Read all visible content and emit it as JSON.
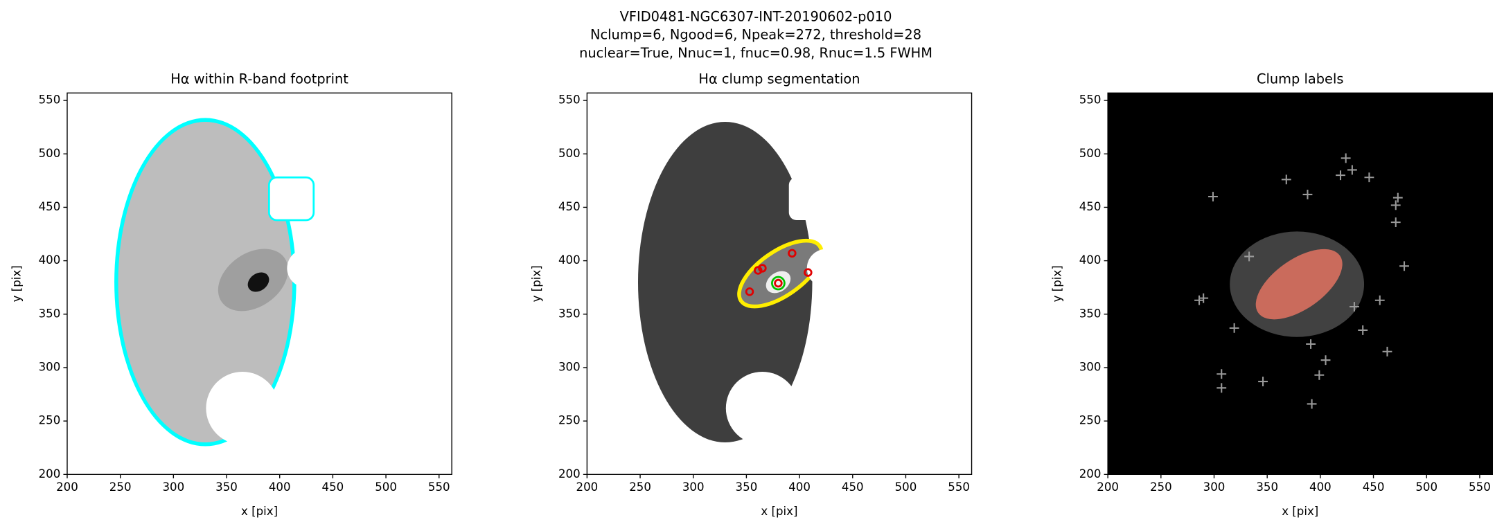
{
  "figure_title": [
    "VFID0481-NGC6307-INT-20190602-p010",
    "Nclump=6, Ngood=6, Npeak=272, threshold=28",
    "nuclear=True, Nnuc=1, fnuc=0.98, Rnuc=1.5 FWHM"
  ],
  "chart_data": [
    {
      "type": "image",
      "title": "Hα within R-band footprint",
      "xlabel": "x [pix]",
      "ylabel": "y [pix]",
      "xlim": [
        200,
        562
      ],
      "ylim": [
        200,
        557
      ],
      "xticks": [
        200,
        250,
        300,
        350,
        400,
        450,
        500,
        550
      ],
      "yticks": [
        200,
        250,
        300,
        350,
        400,
        450,
        500,
        550
      ]
    },
    {
      "type": "image",
      "title": "Hα clump segmentation",
      "xlabel": "x [pix]",
      "ylabel": "y [pix]",
      "xlim": [
        200,
        562
      ],
      "ylim": [
        200,
        557
      ],
      "xticks": [
        200,
        250,
        300,
        350,
        400,
        450,
        500,
        550
      ],
      "yticks": [
        200,
        250,
        300,
        350,
        400,
        450,
        500,
        550
      ],
      "clumps": {
        "x": [
          353,
          361,
          365,
          393,
          408,
          380
        ],
        "y": [
          371,
          391,
          393,
          407,
          389,
          379
        ],
        "color": "#e00000"
      },
      "nucleus": {
        "x": [
          380
        ],
        "y": [
          379
        ],
        "color": "#00c000"
      }
    },
    {
      "type": "image",
      "title": "Clump labels",
      "xlabel": "x [pix]",
      "ylabel": "y [pix]",
      "xlim": [
        200,
        562
      ],
      "ylim": [
        200,
        557
      ],
      "xticks": [
        200,
        250,
        300,
        350,
        400,
        450,
        500,
        550
      ],
      "yticks": [
        200,
        250,
        300,
        350,
        400,
        450,
        500,
        550
      ],
      "peaks": {
        "x": [
          299,
          286,
          290,
          333,
          319,
          307,
          307,
          346,
          392,
          368,
          388,
          424,
          419,
          430,
          446,
          471,
          473,
          471,
          479,
          456,
          463,
          440,
          432,
          399,
          405,
          391
        ],
        "y": [
          460,
          363,
          365,
          404,
          337,
          294,
          281,
          287,
          266,
          476,
          462,
          496,
          480,
          485,
          478,
          452,
          459,
          436,
          395,
          363,
          315,
          335,
          357,
          293,
          307,
          322
        ],
        "color": "#9a9a9a"
      }
    }
  ]
}
